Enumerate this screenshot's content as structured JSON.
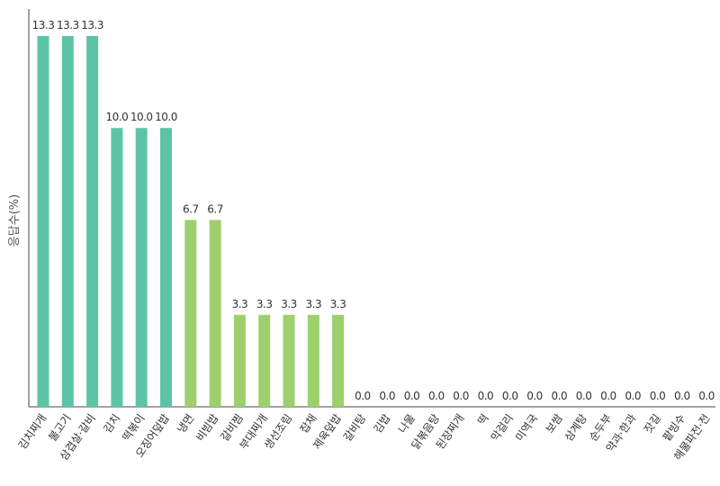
{
  "chart_data": {
    "type": "bar",
    "title": "",
    "xlabel": "",
    "ylabel": "응답수(%)",
    "ylim": [
      0,
      14
    ],
    "grid": false,
    "legend": "none",
    "categories": [
      "김치찌개",
      "불고기",
      "삼겹살·갈비",
      "김치",
      "떡볶이",
      "오징어덮밥",
      "냉면",
      "비빔밥",
      "갈비찜",
      "부대찌개",
      "생선조림",
      "잡채",
      "제육덮밥",
      "갈비탕",
      "김밥",
      "나물",
      "닭볶음탕",
      "된장찌개",
      "떡",
      "막걸리",
      "미역국",
      "보쌈",
      "삼계탕",
      "순두부",
      "약과·한과",
      "잣길",
      "팥빙수",
      "해물파전·전"
    ],
    "values": [
      13.3,
      13.3,
      13.3,
      10.0,
      10.0,
      10.0,
      6.7,
      6.7,
      3.3,
      3.3,
      3.3,
      3.3,
      3.3,
      0.0,
      0.0,
      0.0,
      0.0,
      0.0,
      0.0,
      0.0,
      0.0,
      0.0,
      0.0,
      0.0,
      0.0,
      0.0,
      0.0,
      0.0
    ],
    "value_labels": [
      "13.3",
      "13.3",
      "13.3",
      "10.0",
      "10.0",
      "10.0",
      "6.7",
      "6.7",
      "3.3",
      "3.3",
      "3.3",
      "3.3",
      "3.3",
      "0.0",
      "0.0",
      "0.0",
      "0.0",
      "0.0",
      "0.0",
      "0.0",
      "0.0",
      "0.0",
      "0.0",
      "0.0",
      "0.0",
      "0.0",
      "0.0",
      "0.0"
    ],
    "colors": {
      "high": "#5cc4a4",
      "mid": "#9dcf6c",
      "axis": "#444444"
    }
  }
}
